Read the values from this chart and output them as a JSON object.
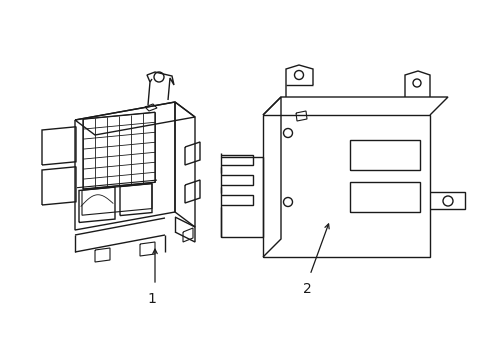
{
  "background_color": "#ffffff",
  "line_color": "#1a1a1a",
  "line_width": 1.0,
  "label1": "1",
  "label2": "2",
  "figsize": [
    4.89,
    3.6
  ],
  "dpi": 100
}
